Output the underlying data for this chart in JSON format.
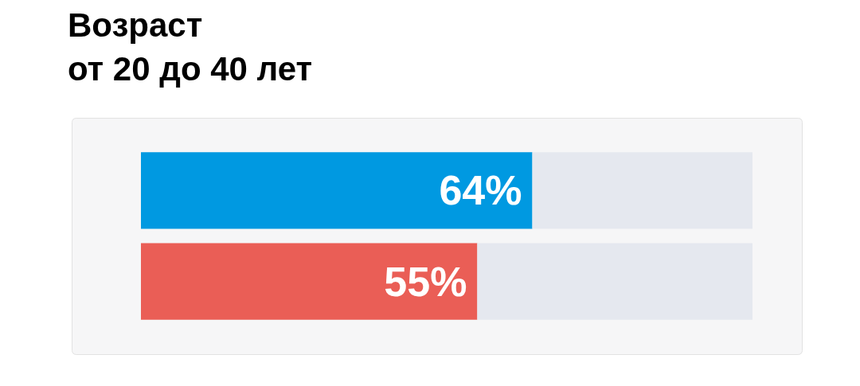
{
  "chart_data": {
    "type": "bar",
    "orientation": "horizontal",
    "stacked": true,
    "title": "Возраст\nот 20 до 40 лет",
    "categories": [
      null,
      null
    ],
    "series": [
      {
        "colors": [
          "#0099e1",
          "#ea5e56"
        ],
        "values": [
          64,
          55
        ],
        "value_labels": [
          "64%",
          "55%"
        ]
      },
      {
        "color": "#e5e8ef",
        "values": [
          36,
          45
        ]
      }
    ],
    "xlim": [
      0,
      100
    ],
    "tick_labels": false
  }
}
